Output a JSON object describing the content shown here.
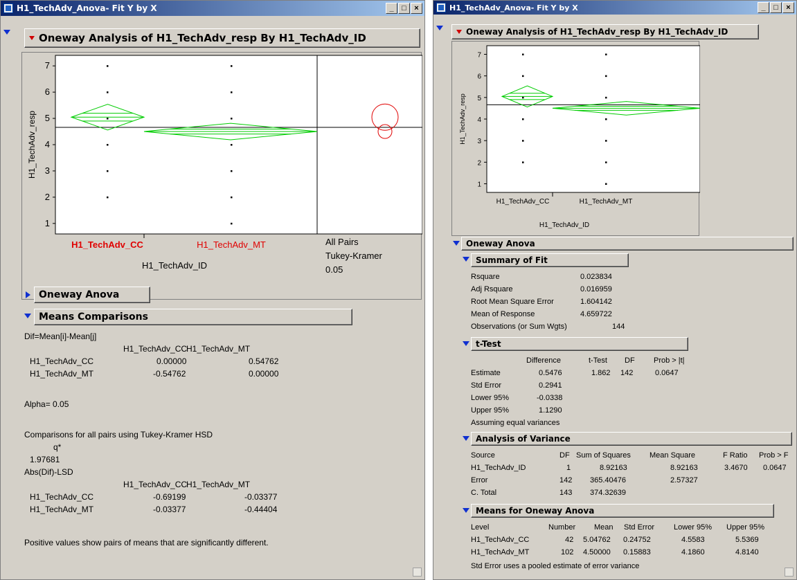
{
  "left": {
    "title": "H1_TechAdv_Anova- Fit Y by X",
    "analysis_header": "Oneway Analysis of H1_TechAdv_resp By H1_TechAdv_ID",
    "plot": {
      "y_label": "H1_TechAdv_resp",
      "x_label": "H1_TechAdv_ID",
      "y_ticks": [
        "7",
        "6",
        "5",
        "4",
        "3",
        "2",
        "1"
      ],
      "categories": [
        "H1_TechAdv_CC",
        "H1_TechAdv_MT"
      ],
      "comparison_labels": [
        "All Pairs",
        "Tukey-Kramer",
        "0.05"
      ]
    },
    "oneway_anova_label": "Oneway Anova",
    "means_comparisons_label": "Means Comparisons",
    "dif_label": "Dif=Mean[i]-Mean[j]",
    "dif_table": {
      "headers": [
        "H1_TechAdv_CC",
        "H1_TechAdv_MT"
      ],
      "rows": [
        {
          "label": "H1_TechAdv_CC",
          "values": [
            "0.00000",
            "0.54762"
          ]
        },
        {
          "label": "H1_TechAdv_MT",
          "values": [
            "-0.54762",
            "0.00000"
          ]
        }
      ]
    },
    "alpha": "Alpha= 0.05",
    "comparisons_text": "Comparisons for all pairs using Tukey-Kramer HSD",
    "q_label": "q*",
    "q_value": "1.97681",
    "abs_label": "Abs(Dif)-LSD",
    "abs_table": {
      "headers": [
        "H1_TechAdv_CC",
        "H1_TechAdv_MT"
      ],
      "rows": [
        {
          "label": "H1_TechAdv_CC",
          "values": [
            "-0.69199",
            "-0.03377"
          ]
        },
        {
          "label": "H1_TechAdv_MT",
          "values": [
            "-0.03377",
            "-0.44404"
          ]
        }
      ]
    },
    "footer_text": "Positive values show pairs of means that are significantly different."
  },
  "right": {
    "title": "H1_TechAdv_Anova- Fit Y by X",
    "analysis_header": "Oneway Analysis of H1_TechAdv_resp By H1_TechAdv_ID",
    "plot": {
      "y_label": "H1_TechAdv_resp",
      "x_label": "H1_TechAdv_ID",
      "y_ticks": [
        "7",
        "6",
        "5",
        "4",
        "3",
        "2",
        "1"
      ],
      "categories": [
        "H1_TechAdv_CC",
        "H1_TechAdv_MT"
      ]
    },
    "oneway_anova_label": "Oneway Anova",
    "summary_of_fit": {
      "label": "Summary of Fit",
      "rows": [
        {
          "k": "Rsquare",
          "v": "0.023834"
        },
        {
          "k": "Adj Rsquare",
          "v": "0.016959"
        },
        {
          "k": "Root Mean Square Error",
          "v": "1.604142"
        },
        {
          "k": "Mean of Response",
          "v": "4.659722"
        },
        {
          "k": "Observations (or Sum Wgts)",
          "v": "144"
        }
      ]
    },
    "t_test": {
      "label": "t-Test",
      "headers": [
        "Difference",
        "t-Test",
        "DF",
        "Prob > |t|"
      ],
      "rows": [
        {
          "label": "Estimate",
          "values": [
            "0.5476",
            "1.862",
            "142",
            "0.0647"
          ]
        },
        {
          "label": "Std Error",
          "values": [
            "0.2941",
            "",
            "",
            ""
          ]
        },
        {
          "label": "Lower 95%",
          "values": [
            "-0.0338",
            "",
            "",
            ""
          ]
        },
        {
          "label": "Upper 95%",
          "values": [
            "1.1290",
            "",
            "",
            ""
          ]
        }
      ],
      "note": "Assuming equal variances"
    },
    "anova": {
      "label": "Analysis of Variance",
      "headers": [
        "Source",
        "DF",
        "Sum of Squares",
        "Mean Square",
        "F Ratio",
        "Prob > F"
      ],
      "rows": [
        [
          "H1_TechAdv_ID",
          "1",
          "8.92163",
          "8.92163",
          "3.4670",
          "0.0647"
        ],
        [
          "Error",
          "142",
          "365.40476",
          "2.57327",
          "",
          ""
        ],
        [
          "C. Total",
          "143",
          "374.32639",
          "",
          "",
          ""
        ]
      ]
    },
    "means": {
      "label": "Means for Oneway Anova",
      "headers": [
        "Level",
        "Number",
        "Mean",
        "Std Error",
        "Lower 95%",
        "Upper 95%"
      ],
      "rows": [
        [
          "H1_TechAdv_CC",
          "42",
          "5.04762",
          "0.24752",
          "4.5583",
          "5.5369"
        ],
        [
          "H1_TechAdv_MT",
          "102",
          "4.50000",
          "0.15883",
          "4.1860",
          "4.8140"
        ]
      ],
      "note": "Std Error uses a pooled estimate of error variance"
    }
  },
  "chart_data": [
    {
      "type": "scatter",
      "ylabel": "H1_TechAdv_resp",
      "xlabel": "H1_TechAdv_ID",
      "ylim": [
        0.6,
        7.4
      ],
      "categories": [
        "H1_TechAdv_CC",
        "H1_TechAdv_MT"
      ],
      "points": {
        "H1_TechAdv_CC": [
          2,
          3,
          4,
          5,
          6,
          7
        ],
        "H1_TechAdv_MT": [
          1,
          2,
          3,
          4,
          5,
          6,
          7
        ]
      },
      "grand_mean": 4.659722,
      "means_diamonds": [
        {
          "category": "H1_TechAdv_CC",
          "mean": 5.04762,
          "lower": 4.5583,
          "upper": 5.5369
        },
        {
          "category": "H1_TechAdv_MT",
          "mean": 4.5,
          "lower": 4.186,
          "upper": 4.814
        }
      ],
      "comparison_circles": [
        {
          "center": 5.04762
        },
        {
          "center": 4.5
        }
      ]
    },
    {
      "type": "scatter",
      "ylabel": "H1_TechAdv_resp",
      "xlabel": "H1_TechAdv_ID",
      "ylim": [
        0.6,
        7.4
      ],
      "categories": [
        "H1_TechAdv_CC",
        "H1_TechAdv_MT"
      ],
      "points": {
        "H1_TechAdv_CC": [
          2,
          3,
          4,
          5,
          6,
          7
        ],
        "H1_TechAdv_MT": [
          1,
          2,
          3,
          4,
          5,
          6,
          7
        ]
      },
      "grand_mean": 4.659722,
      "means_diamonds": [
        {
          "category": "H1_TechAdv_CC",
          "mean": 5.04762,
          "lower": 4.5583,
          "upper": 5.5369
        },
        {
          "category": "H1_TechAdv_MT",
          "mean": 4.5,
          "lower": 4.186,
          "upper": 4.814
        }
      ]
    }
  ]
}
